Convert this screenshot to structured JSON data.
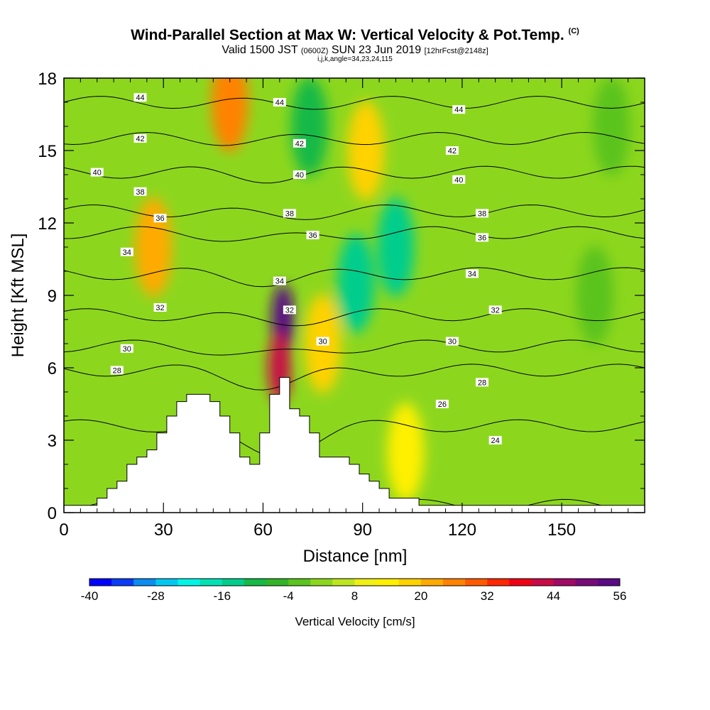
{
  "title": {
    "main": "Wind-Parallel Section at Max W: Vertical Velocity & Pot.Temp.",
    "mark": "(C)",
    "valid_prefix": "Valid 1500 JST",
    "valid_zulu": "(0600Z)",
    "valid_date": "SUN 23 Jun 2019",
    "forecast": "[12hrFcst@2148z]",
    "params": "i,j,k,angle=34,23,24,115"
  },
  "chart_data": {
    "type": "heatmap",
    "xlabel": "Distance [nm]",
    "ylabel": "Height [Kft MSL]",
    "xlim": [
      0,
      175
    ],
    "ylim": [
      0,
      18
    ],
    "x_ticks": [
      0,
      30,
      60,
      90,
      120,
      150
    ],
    "y_ticks": [
      0,
      3,
      6,
      9,
      12,
      15,
      18
    ],
    "colorbar": {
      "label": "Vertical Velocity [cm/s]",
      "ticks": [
        -40,
        -28,
        -16,
        -4,
        8,
        20,
        32,
        44,
        56
      ],
      "colors": [
        "#0000ff",
        "#0a3cf5",
        "#0a8cf0",
        "#00c8f0",
        "#00f5e6",
        "#00e1b4",
        "#00cd8c",
        "#14b946",
        "#32b428",
        "#5ac31e",
        "#8cd71e",
        "#bee61e",
        "#f0f014",
        "#fff000",
        "#ffd200",
        "#ffaa00",
        "#ff8200",
        "#ff5a00",
        "#ff2800",
        "#f00014",
        "#c80a46",
        "#a00a64",
        "#780a78",
        "#5a0a82"
      ]
    },
    "vertical_velocity_features": [
      {
        "x": 66,
        "y": 8.0,
        "value": 52
      },
      {
        "x": 65,
        "y": 6.0,
        "value": 40
      },
      {
        "x": 50,
        "y": 17.0,
        "value": 26
      },
      {
        "x": 27,
        "y": 11.0,
        "value": 20
      },
      {
        "x": 91,
        "y": 15.0,
        "value": 16
      },
      {
        "x": 103,
        "y": 2.5,
        "value": 12
      },
      {
        "x": 78,
        "y": 7.0,
        "value": 16
      },
      {
        "x": 88,
        "y": 9.5,
        "value": -16
      },
      {
        "x": 100,
        "y": 11.0,
        "value": -14
      },
      {
        "x": 74,
        "y": 16.0,
        "value": -10
      },
      {
        "x": 160,
        "y": 9.0,
        "value": -4
      },
      {
        "x": 165,
        "y": 16.0,
        "value": -4
      }
    ],
    "theta_contours": [
      {
        "level": 24,
        "y0": 0.3,
        "dip": 2.4,
        "labels": [
          {
            "x": 130,
            "y": 3.0
          }
        ]
      },
      {
        "level": 26,
        "y0": 3.6,
        "dip": 1.2,
        "labels": [
          {
            "x": 114,
            "y": 4.5
          }
        ]
      },
      {
        "level": 28,
        "y0": 5.9,
        "dip": 0.6,
        "labels": [
          {
            "x": 16,
            "y": 5.9
          },
          {
            "x": 126,
            "y": 5.4
          }
        ]
      },
      {
        "level": 30,
        "y0": 6.9,
        "dip": 0.4,
        "labels": [
          {
            "x": 19,
            "y": 6.8
          },
          {
            "x": 78,
            "y": 7.1
          },
          {
            "x": 117,
            "y": 7.1
          }
        ]
      },
      {
        "level": 32,
        "y0": 8.2,
        "dip": 0.3,
        "labels": [
          {
            "x": 29,
            "y": 8.5
          },
          {
            "x": 68,
            "y": 8.4
          },
          {
            "x": 130,
            "y": 8.4
          }
        ]
      },
      {
        "level": 34,
        "y0": 9.9,
        "dip": 0.3,
        "labels": [
          {
            "x": 19,
            "y": 10.8
          },
          {
            "x": 65,
            "y": 9.6
          },
          {
            "x": 123,
            "y": 9.9
          }
        ]
      },
      {
        "level": 36,
        "y0": 11.6,
        "dip": 0.3,
        "labels": [
          {
            "x": 29,
            "y": 12.2
          },
          {
            "x": 75,
            "y": 11.5
          },
          {
            "x": 126,
            "y": 11.4
          }
        ]
      },
      {
        "level": 38,
        "y0": 12.5,
        "dip": 0.2,
        "labels": [
          {
            "x": 23,
            "y": 13.3
          },
          {
            "x": 68,
            "y": 12.4
          },
          {
            "x": 126,
            "y": 12.4
          }
        ]
      },
      {
        "level": 40,
        "y0": 14.1,
        "dip": 0.2,
        "labels": [
          {
            "x": 10,
            "y": 14.1
          },
          {
            "x": 71,
            "y": 14.0
          },
          {
            "x": 119,
            "y": 13.8
          }
        ]
      },
      {
        "level": 42,
        "y0": 15.5,
        "dip": 0.1,
        "labels": [
          {
            "x": 23,
            "y": 15.5
          },
          {
            "x": 71,
            "y": 15.3
          },
          {
            "x": 117,
            "y": 15.0
          }
        ]
      },
      {
        "level": 44,
        "y0": 17.0,
        "dip": 0.1,
        "labels": [
          {
            "x": 23,
            "y": 17.2
          },
          {
            "x": 65,
            "y": 17.0
          },
          {
            "x": 119,
            "y": 16.7
          }
        ]
      }
    ],
    "terrain_profile": [
      [
        0,
        0.3
      ],
      [
        10,
        0.3
      ],
      [
        10,
        0.6
      ],
      [
        13,
        0.6
      ],
      [
        13,
        1.0
      ],
      [
        16,
        1.0
      ],
      [
        16,
        1.3
      ],
      [
        19,
        1.3
      ],
      [
        19,
        2.0
      ],
      [
        22,
        2.0
      ],
      [
        22,
        2.3
      ],
      [
        25,
        2.3
      ],
      [
        25,
        2.6
      ],
      [
        28,
        2.6
      ],
      [
        28,
        3.3
      ],
      [
        31,
        3.3
      ],
      [
        31,
        4.0
      ],
      [
        34,
        4.0
      ],
      [
        34,
        4.6
      ],
      [
        37,
        4.6
      ],
      [
        37,
        4.9
      ],
      [
        44,
        4.9
      ],
      [
        44,
        4.6
      ],
      [
        47,
        4.6
      ],
      [
        47,
        4.0
      ],
      [
        50,
        4.0
      ],
      [
        50,
        3.3
      ],
      [
        53,
        3.3
      ],
      [
        53,
        2.3
      ],
      [
        56,
        2.3
      ],
      [
        56,
        2.0
      ],
      [
        59,
        2.0
      ],
      [
        59,
        3.3
      ],
      [
        62,
        3.3
      ],
      [
        62,
        4.9
      ],
      [
        65,
        4.9
      ],
      [
        65,
        5.6
      ],
      [
        68,
        5.6
      ],
      [
        68,
        4.3
      ],
      [
        71,
        4.3
      ],
      [
        71,
        4.0
      ],
      [
        74,
        4.0
      ],
      [
        74,
        3.3
      ],
      [
        77,
        3.3
      ],
      [
        77,
        2.3
      ],
      [
        86,
        2.3
      ],
      [
        86,
        2.0
      ],
      [
        89,
        2.0
      ],
      [
        89,
        1.6
      ],
      [
        92,
        1.6
      ],
      [
        92,
        1.3
      ],
      [
        95,
        1.3
      ],
      [
        95,
        1.0
      ],
      [
        98,
        1.0
      ],
      [
        98,
        0.6
      ],
      [
        107,
        0.6
      ],
      [
        107,
        0.3
      ],
      [
        175,
        0.3
      ]
    ]
  }
}
